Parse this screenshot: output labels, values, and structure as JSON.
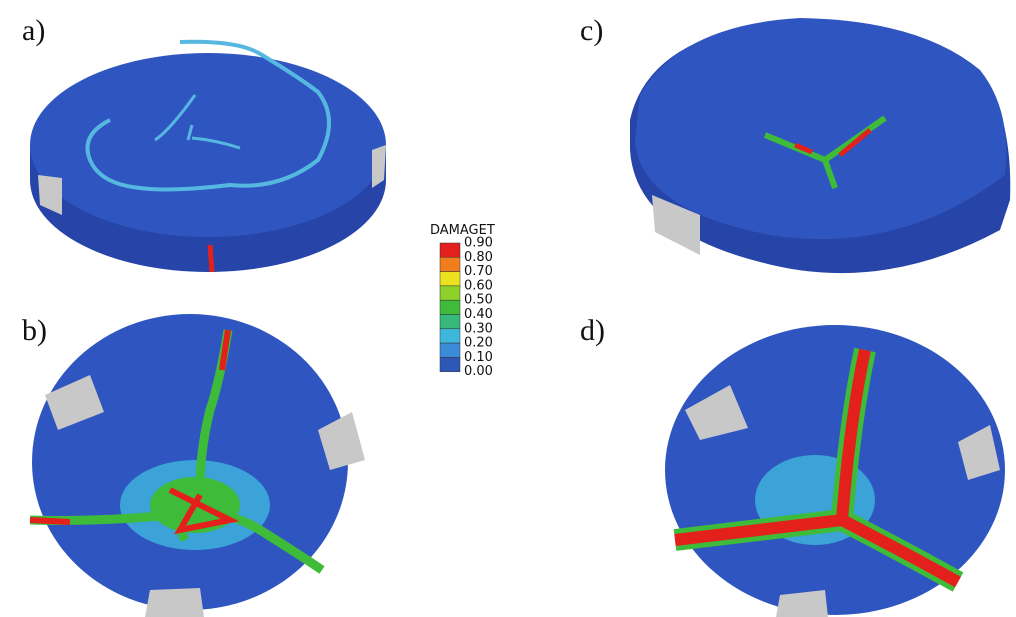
{
  "panels": [
    {
      "label": "a)"
    },
    {
      "label": "b)"
    },
    {
      "label": "c)"
    },
    {
      "label": "d)"
    }
  ],
  "legend": {
    "title": "DAMAGET",
    "labels": [
      "0.90",
      "0.80",
      "0.70",
      "0.60",
      "0.50",
      "0.40",
      "0.30",
      "0.20",
      "0.10",
      "0.00"
    ],
    "colors": [
      "#e3201b",
      "#f27d1c",
      "#ece11f",
      "#8fd12b",
      "#3fbb3a",
      "#35b87a",
      "#3fb7dc",
      "#3a8bd8",
      "#2d58b8"
    ]
  }
}
